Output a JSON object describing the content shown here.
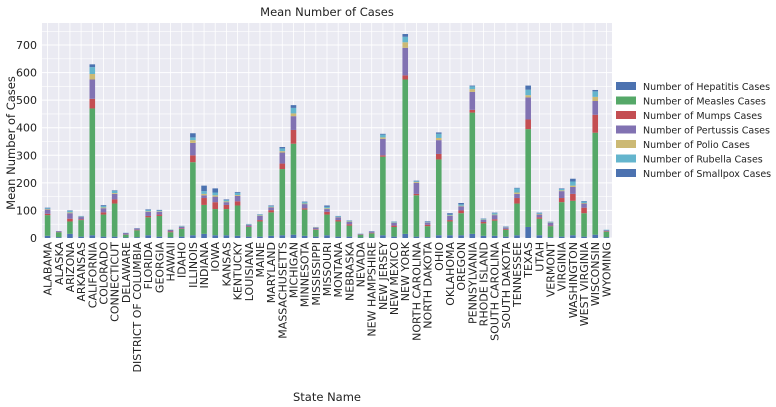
{
  "chart_data": {
    "type": "bar",
    "stacked": true,
    "title": "Mean Number of Cases",
    "xlabel": "State Name",
    "ylabel": "Mean Number of Cases",
    "ylim": [
      0,
      780
    ],
    "yticks": [
      0,
      100,
      200,
      300,
      400,
      500,
      600,
      700
    ],
    "grid": true,
    "legend_position": "right",
    "categories": [
      "ALABAMA",
      "ALASKA",
      "ARIZONA",
      "ARKANSAS",
      "CALIFORNIA",
      "COLORADO",
      "CONNECTICUT",
      "DELAWARE",
      "DISTRICT OF COLUMBIA",
      "FLORIDA",
      "GEORGIA",
      "HAWAII",
      "IDAHO",
      "ILLINOIS",
      "INDIANA",
      "IOWA",
      "KANSAS",
      "KENTUCKY",
      "LOUISIANA",
      "MAINE",
      "MARYLAND",
      "MASSACHUSETTS",
      "MICHIGAN",
      "MINNESOTA",
      "MISSISSIPPI",
      "MISSOURI",
      "MONTANA",
      "NEBRASKA",
      "NEVADA",
      "NEW HAMPSHIRE",
      "NEW JERSEY",
      "NEW MEXICO",
      "NEW YORK",
      "NORTH CAROLINA",
      "NORTH DAKOTA",
      "OHIO",
      "OKLAHOMA",
      "OREGON",
      "PENNSYLVANIA",
      "RHODE ISLAND",
      "SOUTH CAROLINA",
      "SOUTH DAKOTA",
      "TENNESSEE",
      "TEXAS",
      "UTAH",
      "VERMONT",
      "VIRGINIA",
      "WASHINGTON",
      "WEST VIRGINIA",
      "WISCONSIN",
      "WYOMING"
    ],
    "series": [
      {
        "name": "Number of Hepatitis Cases",
        "color": "#4c72b0",
        "values": [
          8,
          3,
          15,
          5,
          10,
          5,
          5,
          2,
          3,
          10,
          5,
          3,
          5,
          10,
          15,
          10,
          10,
          8,
          5,
          5,
          8,
          10,
          12,
          8,
          5,
          10,
          5,
          5,
          2,
          2,
          10,
          5,
          15,
          5,
          3,
          10,
          10,
          10,
          15,
          8,
          8,
          5,
          10,
          40,
          10,
          3,
          5,
          10,
          5,
          12,
          3
        ]
      },
      {
        "name": "Number of Measles Cases",
        "color": "#55a868",
        "values": [
          75,
          18,
          45,
          60,
          460,
          80,
          120,
          10,
          25,
          65,
          75,
          18,
          28,
          265,
          105,
          95,
          95,
          110,
          35,
          55,
          85,
          240,
          330,
          95,
          25,
          75,
          55,
          40,
          10,
          15,
          285,
          35,
          560,
          150,
          40,
          275,
          50,
          80,
          440,
          45,
          55,
          25,
          115,
          355,
          60,
          40,
          125,
          125,
          85,
          370,
          20
        ]
      },
      {
        "name": "Number of Mumps Cases",
        "color": "#c44e52",
        "values": [
          5,
          1,
          10,
          3,
          35,
          8,
          15,
          1,
          2,
          5,
          5,
          3,
          2,
          25,
          25,
          25,
          15,
          15,
          2,
          5,
          8,
          20,
          50,
          5,
          2,
          10,
          5,
          5,
          1,
          2,
          5,
          5,
          15,
          5,
          5,
          20,
          5,
          10,
          10,
          5,
          5,
          3,
          20,
          35,
          5,
          2,
          15,
          25,
          20,
          65,
          2
        ]
      },
      {
        "name": "Number of Pertussis Cases",
        "color": "#8172b2",
        "values": [
          15,
          3,
          20,
          8,
          70,
          15,
          20,
          5,
          5,
          15,
          10,
          5,
          5,
          45,
          10,
          20,
          10,
          20,
          5,
          15,
          10,
          40,
          50,
          15,
          5,
          10,
          10,
          8,
          2,
          5,
          60,
          10,
          100,
          40,
          8,
          50,
          15,
          15,
          65,
          8,
          15,
          5,
          15,
          80,
          10,
          10,
          25,
          25,
          15,
          50,
          3
        ]
      },
      {
        "name": "Number of Polio Cases",
        "color": "#ccb974",
        "values": [
          2,
          0,
          3,
          1,
          20,
          3,
          3,
          0,
          0,
          2,
          2,
          1,
          1,
          10,
          5,
          5,
          3,
          3,
          1,
          2,
          2,
          5,
          10,
          2,
          1,
          3,
          1,
          2,
          0,
          0,
          5,
          1,
          20,
          3,
          1,
          8,
          2,
          2,
          10,
          1,
          2,
          1,
          5,
          8,
          2,
          1,
          3,
          5,
          2,
          15,
          0
        ]
      },
      {
        "name": "Number of Rubella Cases",
        "color": "#64b5cd",
        "values": [
          3,
          0,
          5,
          2,
          25,
          5,
          8,
          1,
          1,
          5,
          3,
          1,
          2,
          10,
          10,
          10,
          5,
          8,
          2,
          3,
          3,
          10,
          20,
          5,
          1,
          5,
          3,
          3,
          1,
          1,
          10,
          3,
          20,
          3,
          2,
          15,
          3,
          5,
          10,
          3,
          5,
          2,
          15,
          20,
          3,
          2,
          5,
          15,
          5,
          20,
          2
        ]
      },
      {
        "name": "Number of Smallpox Cases",
        "color": "#4c72b0",
        "values": [
          2,
          0,
          2,
          1,
          10,
          3,
          2,
          0,
          0,
          2,
          2,
          0,
          1,
          15,
          20,
          15,
          2,
          3,
          1,
          1,
          2,
          5,
          10,
          2,
          1,
          5,
          1,
          1,
          0,
          0,
          3,
          1,
          10,
          2,
          2,
          5,
          5,
          5,
          3,
          1,
          2,
          1,
          2,
          15,
          2,
          1,
          2,
          10,
          2,
          5,
          0
        ]
      }
    ]
  }
}
